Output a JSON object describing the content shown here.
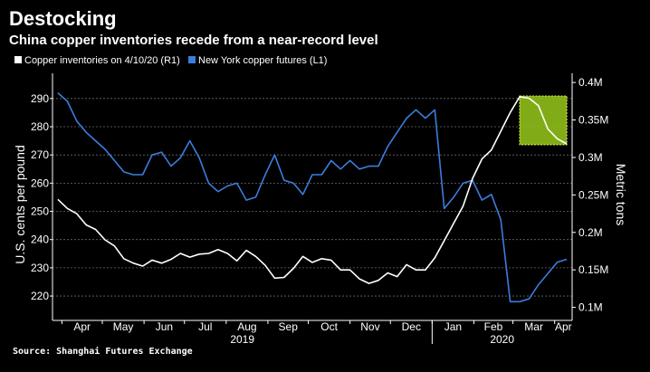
{
  "header": {
    "title": "Destocking",
    "subtitle": "China copper inventories recede from a near-record level"
  },
  "footer": {
    "source": "Source: Shanghai Futures Exchange"
  },
  "colors": {
    "background": "#000000",
    "inventories": "#ffffff",
    "futures": "#3b7ddd",
    "highlight_fill": "#8fbf1a",
    "highlight_border": "#c8e64a"
  },
  "chart_data": {
    "type": "line",
    "legend": [
      "Copper inventories on 4/10/20 (R1)",
      "New York copper futures (L1)"
    ],
    "legend_placement": "top-left",
    "ylabel": "U.S. cents per pound",
    "y2label": "Metric tons",
    "ylim": [
      212,
      297
    ],
    "y2lim": [
      0.085,
      0.405
    ],
    "y_ticks": [
      "220",
      "230",
      "240",
      "250",
      "260",
      "270",
      "280",
      "290"
    ],
    "y2_ticks": [
      "0.1M",
      "0.15M",
      "0.2M",
      "0.25M",
      "0.3M",
      "0.35M",
      "0.4M"
    ],
    "x_month_labels": [
      "Apr",
      "May",
      "Jun",
      "Jul",
      "Aug",
      "Sep",
      "Oct",
      "Nov",
      "Dec",
      "Jan",
      "Feb",
      "Mar",
      "Apr"
    ],
    "x_year_labels": [
      "2019",
      "2020"
    ],
    "grid": "horizontal dashed",
    "highlight": {
      "x_range": [
        "2020-03-06",
        "2020-04-10"
      ],
      "y2_range": [
        0.317,
        0.382
      ]
    },
    "series": [
      {
        "name": "New York copper futures (L1)",
        "axis": "left",
        "x": [
          "2019-03-29",
          "2019-04-05",
          "2019-04-12",
          "2019-04-19",
          "2019-04-26",
          "2019-05-03",
          "2019-05-10",
          "2019-05-17",
          "2019-05-24",
          "2019-05-31",
          "2019-06-07",
          "2019-06-14",
          "2019-06-21",
          "2019-06-28",
          "2019-07-05",
          "2019-07-12",
          "2019-07-19",
          "2019-07-26",
          "2019-08-02",
          "2019-08-09",
          "2019-08-16",
          "2019-08-23",
          "2019-08-30",
          "2019-09-06",
          "2019-09-13",
          "2019-09-20",
          "2019-09-27",
          "2019-10-04",
          "2019-10-11",
          "2019-10-18",
          "2019-10-25",
          "2019-11-01",
          "2019-11-08",
          "2019-11-15",
          "2019-11-22",
          "2019-11-29",
          "2019-12-06",
          "2019-12-13",
          "2019-12-20",
          "2019-12-27",
          "2020-01-03",
          "2020-01-10",
          "2020-01-17",
          "2020-01-24",
          "2020-01-31",
          "2020-02-07",
          "2020-02-14",
          "2020-02-21",
          "2020-02-28",
          "2020-03-06",
          "2020-03-13",
          "2020-03-20",
          "2020-03-27",
          "2020-04-03",
          "2020-04-10"
        ],
        "values": [
          292,
          289,
          282,
          278,
          275,
          272,
          268,
          264,
          263,
          263,
          270,
          271,
          266,
          269,
          275,
          269,
          260,
          257,
          259,
          260,
          254,
          255,
          263,
          270,
          261,
          260,
          256,
          263,
          263,
          268,
          265,
          268,
          265,
          266,
          266,
          273,
          278,
          283,
          286,
          283,
          286,
          251,
          255,
          260,
          261,
          254,
          256,
          247,
          218,
          218,
          219,
          224,
          228,
          232,
          233
        ]
      },
      {
        "name": "Copper inventories on 4/10/20 (R1)",
        "axis": "right",
        "x": [
          "2019-03-29",
          "2019-04-05",
          "2019-04-12",
          "2019-04-19",
          "2019-04-26",
          "2019-05-03",
          "2019-05-10",
          "2019-05-17",
          "2019-05-24",
          "2019-05-31",
          "2019-06-07",
          "2019-06-14",
          "2019-06-21",
          "2019-06-28",
          "2019-07-05",
          "2019-07-12",
          "2019-07-19",
          "2019-07-26",
          "2019-08-02",
          "2019-08-09",
          "2019-08-16",
          "2019-08-23",
          "2019-08-30",
          "2019-09-06",
          "2019-09-13",
          "2019-09-20",
          "2019-09-27",
          "2019-10-04",
          "2019-10-11",
          "2019-10-18",
          "2019-10-25",
          "2019-11-01",
          "2019-11-08",
          "2019-11-15",
          "2019-11-22",
          "2019-11-29",
          "2019-12-06",
          "2019-12-13",
          "2019-12-20",
          "2019-12-27",
          "2020-01-03",
          "2020-01-10",
          "2020-01-17",
          "2020-01-24",
          "2020-01-31",
          "2020-02-07",
          "2020-02-14",
          "2020-02-21",
          "2020-02-28",
          "2020-03-06",
          "2020-03-13",
          "2020-03-20",
          "2020-03-27",
          "2020-04-03",
          "2020-04-10"
        ],
        "values": [
          0.244,
          0.232,
          0.225,
          0.21,
          0.204,
          0.19,
          0.182,
          0.165,
          0.159,
          0.155,
          0.163,
          0.159,
          0.164,
          0.172,
          0.167,
          0.171,
          0.172,
          0.177,
          0.172,
          0.162,
          0.176,
          0.168,
          0.156,
          0.139,
          0.14,
          0.152,
          0.168,
          0.16,
          0.165,
          0.163,
          0.15,
          0.15,
          0.138,
          0.132,
          0.136,
          0.146,
          0.141,
          0.157,
          0.15,
          0.15,
          0.166,
          0.189,
          0.212,
          0.235,
          0.272,
          0.298,
          0.31,
          0.335,
          0.36,
          0.381,
          0.379,
          0.369,
          0.338,
          0.325,
          0.318
        ]
      }
    ]
  }
}
